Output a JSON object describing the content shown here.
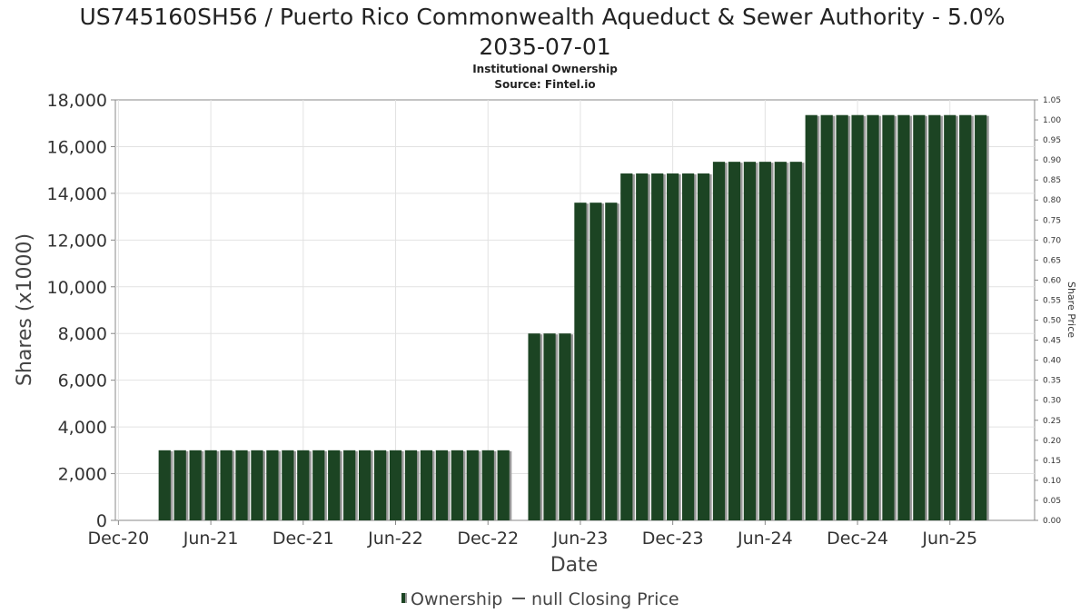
{
  "chart_data": {
    "type": "bar",
    "title": "US745160SH56 / Puerto Rico Commonwealth Aqueduct & Sewer Authority - 5.0%",
    "title_line2": "2035-07-01",
    "subtitle": "Institutional Ownership",
    "source": "Source: Fintel.io",
    "xlabel": "Date",
    "ylabel": "Shares (x1000)",
    "y2label": "Share Price",
    "ylim": [
      0,
      18000
    ],
    "y_ticks": [
      "0",
      "2,000",
      "4,000",
      "6,000",
      "8,000",
      "10,000",
      "12,000",
      "14,000",
      "16,000",
      "18,000"
    ],
    "y2lim": [
      0,
      1.05
    ],
    "y2_ticks": [
      "0.00",
      "0.05",
      "0.10",
      "0.15",
      "0.20",
      "0.25",
      "0.30",
      "0.35",
      "0.40",
      "0.45",
      "0.50",
      "0.55",
      "0.60",
      "0.65",
      "0.70",
      "0.75",
      "0.80",
      "0.85",
      "0.90",
      "0.95",
      "1.00",
      "1.05"
    ],
    "x_ticks": [
      {
        "label": "Dec-20",
        "month": 0
      },
      {
        "label": "Jun-21",
        "month": 6
      },
      {
        "label": "Dec-21",
        "month": 12
      },
      {
        "label": "Jun-22",
        "month": 18
      },
      {
        "label": "Dec-22",
        "month": 24
      },
      {
        "label": "Jun-23",
        "month": 30
      },
      {
        "label": "Dec-23",
        "month": 36
      },
      {
        "label": "Jun-24",
        "month": 42
      },
      {
        "label": "Dec-24",
        "month": 48
      },
      {
        "label": "Jun-25",
        "month": 54
      }
    ],
    "xlim_months": [
      -0.2,
      59.5
    ],
    "grid": true,
    "legend_position": "bottom-center",
    "series": [
      {
        "name": "Ownership",
        "color": "#1c4423",
        "bars": [
          {
            "month": 3,
            "value": 3000
          },
          {
            "month": 4,
            "value": 3000
          },
          {
            "month": 5,
            "value": 3000
          },
          {
            "month": 6,
            "value": 3000
          },
          {
            "month": 7,
            "value": 3000
          },
          {
            "month": 8,
            "value": 3000
          },
          {
            "month": 9,
            "value": 3000
          },
          {
            "month": 10,
            "value": 3000
          },
          {
            "month": 11,
            "value": 3000
          },
          {
            "month": 12,
            "value": 3000
          },
          {
            "month": 13,
            "value": 3000
          },
          {
            "month": 14,
            "value": 3000
          },
          {
            "month": 15,
            "value": 3000
          },
          {
            "month": 16,
            "value": 3000
          },
          {
            "month": 17,
            "value": 3000
          },
          {
            "month": 18,
            "value": 3000
          },
          {
            "month": 19,
            "value": 3000
          },
          {
            "month": 20,
            "value": 3000
          },
          {
            "month": 21,
            "value": 3000
          },
          {
            "month": 22,
            "value": 3000
          },
          {
            "month": 23,
            "value": 3000
          },
          {
            "month": 24,
            "value": 3000
          },
          {
            "month": 25,
            "value": 3000
          },
          {
            "month": 27,
            "value": 8000
          },
          {
            "month": 28,
            "value": 8000
          },
          {
            "month": 29,
            "value": 8000
          },
          {
            "month": 30,
            "value": 13600
          },
          {
            "month": 31,
            "value": 13600
          },
          {
            "month": 32,
            "value": 13600
          },
          {
            "month": 33,
            "value": 14850
          },
          {
            "month": 34,
            "value": 14850
          },
          {
            "month": 35,
            "value": 14850
          },
          {
            "month": 36,
            "value": 14850
          },
          {
            "month": 37,
            "value": 14850
          },
          {
            "month": 38,
            "value": 14850
          },
          {
            "month": 39,
            "value": 15350
          },
          {
            "month": 40,
            "value": 15350
          },
          {
            "month": 41,
            "value": 15350
          },
          {
            "month": 42,
            "value": 15350
          },
          {
            "month": 43,
            "value": 15350
          },
          {
            "month": 44,
            "value": 15350
          },
          {
            "month": 45,
            "value": 17350
          },
          {
            "month": 46,
            "value": 17350
          },
          {
            "month": 47,
            "value": 17350
          },
          {
            "month": 48,
            "value": 17350
          },
          {
            "month": 49,
            "value": 17350
          },
          {
            "month": 50,
            "value": 17350
          },
          {
            "month": 51,
            "value": 17350
          },
          {
            "month": 52,
            "value": 17350
          },
          {
            "month": 53,
            "value": 17350
          },
          {
            "month": 54,
            "value": 17350
          },
          {
            "month": 55,
            "value": 17350
          },
          {
            "month": 56,
            "value": 17350
          }
        ]
      },
      {
        "name": "null Closing Price",
        "color": "#555555",
        "values": []
      }
    ]
  }
}
